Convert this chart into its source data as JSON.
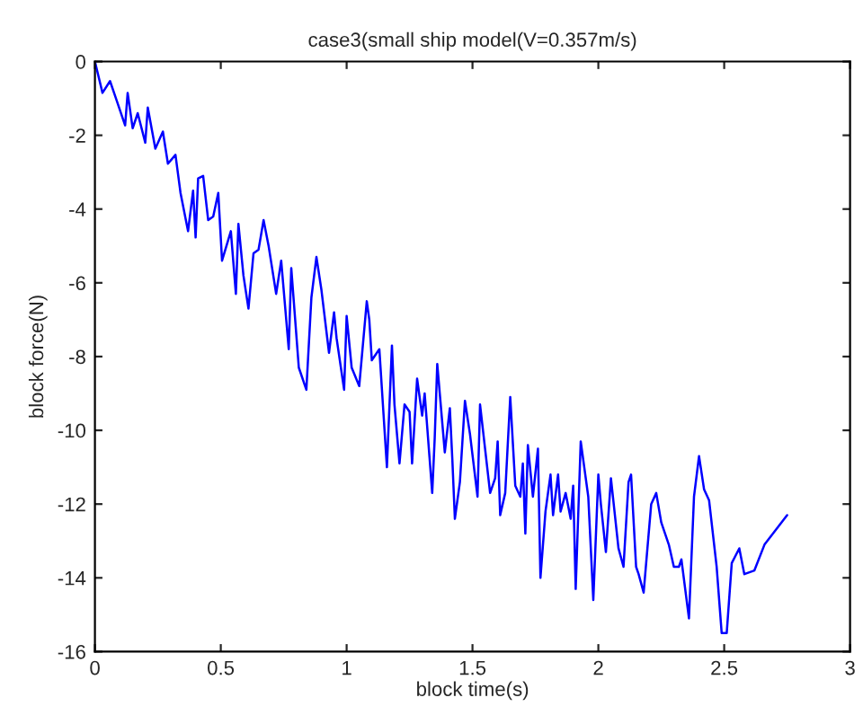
{
  "chart_data": {
    "type": "line",
    "title": "case3(small ship model(V=0.357m/s)",
    "xlabel": "block time(s)",
    "ylabel": "block force(N)",
    "xlim": [
      0,
      3
    ],
    "ylim": [
      -16,
      0
    ],
    "xticks": [
      0,
      0.5,
      1,
      1.5,
      2,
      2.5,
      3
    ],
    "yticks": [
      -16,
      -14,
      -12,
      -10,
      -8,
      -6,
      -4,
      -2,
      0
    ],
    "grid": false,
    "legend": false,
    "series": [
      {
        "color": "#0000ff",
        "x": [
          0,
          0.03,
          0.06,
          0.08,
          0.12,
          0.13,
          0.15,
          0.17,
          0.2,
          0.21,
          0.24,
          0.27,
          0.29,
          0.32,
          0.34,
          0.37,
          0.39,
          0.4,
          0.41,
          0.43,
          0.45,
          0.47,
          0.49,
          0.505,
          0.54,
          0.56,
          0.57,
          0.59,
          0.61,
          0.63,
          0.65,
          0.67,
          0.69,
          0.72,
          0.74,
          0.77,
          0.78,
          0.81,
          0.84,
          0.86,
          0.88,
          0.9,
          0.93,
          0.95,
          0.96,
          0.99,
          1.0,
          1.02,
          1.05,
          1.08,
          1.09,
          1.1,
          1.13,
          1.16,
          1.18,
          1.19,
          1.21,
          1.23,
          1.25,
          1.26,
          1.28,
          1.3,
          1.31,
          1.34,
          1.35,
          1.36,
          1.39,
          1.41,
          1.42,
          1.43,
          1.45,
          1.47,
          1.49,
          1.52,
          1.53,
          1.57,
          1.59,
          1.6,
          1.61,
          1.63,
          1.65,
          1.67,
          1.69,
          1.7,
          1.71,
          1.72,
          1.74,
          1.76,
          1.77,
          1.79,
          1.81,
          1.82,
          1.84,
          1.85,
          1.87,
          1.89,
          1.9,
          1.91,
          1.93,
          1.96,
          1.98,
          2.0,
          2.01,
          2.03,
          2.05,
          2.08,
          2.1,
          2.12,
          2.13,
          2.15,
          2.16,
          2.18,
          2.21,
          2.23,
          2.25,
          2.28,
          2.3,
          2.32,
          2.33,
          2.36,
          2.38,
          2.4,
          2.42,
          2.44,
          2.47,
          2.49,
          2.51,
          2.53,
          2.56,
          2.58,
          2.62,
          2.66,
          2.75
        ],
        "values": [
          0,
          -0.85,
          -0.53,
          -0.93,
          -1.73,
          -0.85,
          -1.81,
          -1.4,
          -2.2,
          -1.25,
          -2.36,
          -1.9,
          -2.77,
          -2.53,
          -3.56,
          -4.6,
          -3.5,
          -4.77,
          -3.17,
          -3.1,
          -4.3,
          -4.2,
          -3.56,
          -5.4,
          -4.6,
          -6.3,
          -4.4,
          -5.8,
          -6.7,
          -5.2,
          -5.1,
          -4.3,
          -5.0,
          -6.3,
          -5.4,
          -7.8,
          -5.6,
          -8.3,
          -8.9,
          -6.4,
          -5.3,
          -6.2,
          -7.9,
          -6.8,
          -7.5,
          -8.9,
          -6.9,
          -8.3,
          -8.8,
          -6.5,
          -7.0,
          -8.1,
          -7.8,
          -11.0,
          -7.7,
          -9.3,
          -10.9,
          -9.3,
          -9.5,
          -10.9,
          -8.6,
          -9.6,
          -9.0,
          -11.7,
          -10.2,
          -8.2,
          -10.6,
          -9.4,
          -10.8,
          -12.4,
          -11.4,
          -9.2,
          -10.1,
          -11.8,
          -9.3,
          -11.7,
          -11.3,
          -10.3,
          -12.3,
          -11.7,
          -9.1,
          -11.5,
          -11.8,
          -10.9,
          -12.8,
          -10.4,
          -11.8,
          -10.5,
          -14.0,
          -12.2,
          -11.2,
          -12.3,
          -11.2,
          -12.2,
          -11.7,
          -12.4,
          -11.5,
          -14.3,
          -10.3,
          -11.8,
          -14.6,
          -11.2,
          -12.0,
          -13.3,
          -11.3,
          -13.2,
          -13.7,
          -11.4,
          -11.2,
          -13.7,
          -13.9,
          -14.4,
          -12.0,
          -11.7,
          -12.5,
          -13.1,
          -13.7,
          -13.7,
          -13.5,
          -15.1,
          -11.8,
          -10.7,
          -11.6,
          -11.9,
          -13.7,
          -15.5,
          -15.5,
          -13.6,
          -13.2,
          -13.9,
          -13.8,
          -13.1,
          -12.3
        ]
      }
    ]
  }
}
